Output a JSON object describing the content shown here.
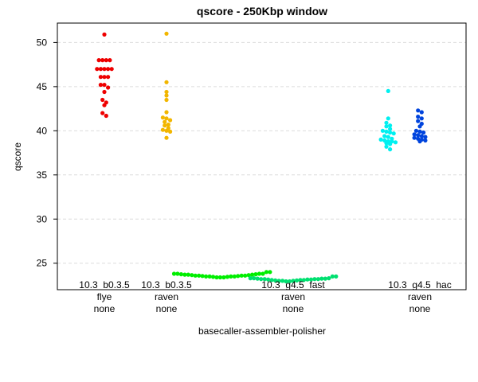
{
  "chart_data": {
    "type": "scatter",
    "subtype": "beeswarm",
    "title": "qscore - 250Kbp window",
    "xlabel": "basecaller-assembler-polisher",
    "ylabel": "qscore",
    "ylim": [
      22,
      52.2
    ],
    "yticks": [
      25,
      30,
      35,
      40,
      45,
      50
    ],
    "grid": true,
    "categories": [
      {
        "lines": [
          "10.3_b0.3.5",
          "flye",
          "none"
        ]
      },
      {
        "lines": [
          "10.3_b0.3.5",
          "raven",
          "none"
        ]
      },
      {
        "lines": [
          "10.3_g4.5_fast",
          "raven",
          "none"
        ]
      },
      {
        "lines": [
          "10.3_g4.5_hac",
          "raven",
          "none"
        ]
      }
    ],
    "series": [
      {
        "color": "#ee0000",
        "category_index": 0,
        "x_offset": 0,
        "values": [
          50.9,
          48.0,
          48.0,
          48.0,
          48.0,
          47.0,
          47.0,
          47.0,
          47.0,
          47.0,
          46.1,
          46.1,
          46.1,
          45.2,
          45.2,
          44.9,
          44.4,
          43.5,
          43.2,
          42.9,
          42.0,
          41.7
        ]
      },
      {
        "color": "#f2b600",
        "category_index": 1,
        "x_offset": 0,
        "values": [
          51.0,
          45.5,
          44.4,
          44.0,
          43.5,
          42.1,
          41.5,
          41.4,
          41.2,
          41.0,
          40.7,
          40.6,
          40.3,
          40.1,
          40.0,
          39.9,
          39.2
        ]
      },
      {
        "color": "#00ee00",
        "category_index": 2,
        "x_offset": -0.43,
        "spread": "wide",
        "values": [
          23.8,
          23.8,
          23.75,
          23.7,
          23.7,
          23.65,
          23.6,
          23.6,
          23.55,
          23.5,
          23.5,
          23.45,
          23.4,
          23.4,
          23.4,
          23.45,
          23.5,
          23.5,
          23.55,
          23.6,
          23.6,
          23.65,
          23.7,
          23.75,
          23.8,
          23.8,
          24.0,
          24.0
        ]
      },
      {
        "color": "#00e070",
        "category_index": 2,
        "x_offset": 0,
        "spread": "wide",
        "values": [
          23.3,
          23.3,
          23.25,
          23.2,
          23.2,
          23.15,
          23.1,
          23.05,
          23.0,
          23.0,
          22.95,
          22.95,
          23.0,
          23.05,
          23.1,
          23.1,
          23.15,
          23.15,
          23.2,
          23.2,
          23.25,
          23.25,
          23.3,
          23.5,
          23.5
        ]
      },
      {
        "color": "#00f0f0",
        "category_index": 2,
        "x_offset": 0.43,
        "values": [
          44.5,
          41.4,
          40.9,
          40.6,
          40.5,
          40.2,
          40.0,
          39.9,
          39.8,
          39.7,
          39.4,
          39.3,
          39.1,
          39.0,
          38.9,
          38.8,
          38.8,
          38.7,
          38.6,
          38.5,
          38.2,
          37.9
        ]
      },
      {
        "color": "#0044dd",
        "category_index": 3,
        "x_offset": 0,
        "values": [
          42.3,
          42.1,
          41.6,
          41.4,
          41.1,
          40.8,
          40.5,
          40.0,
          39.9,
          39.8,
          39.6,
          39.5,
          39.4,
          39.3,
          39.2,
          39.1,
          39.0,
          38.9,
          38.8
        ]
      }
    ]
  }
}
